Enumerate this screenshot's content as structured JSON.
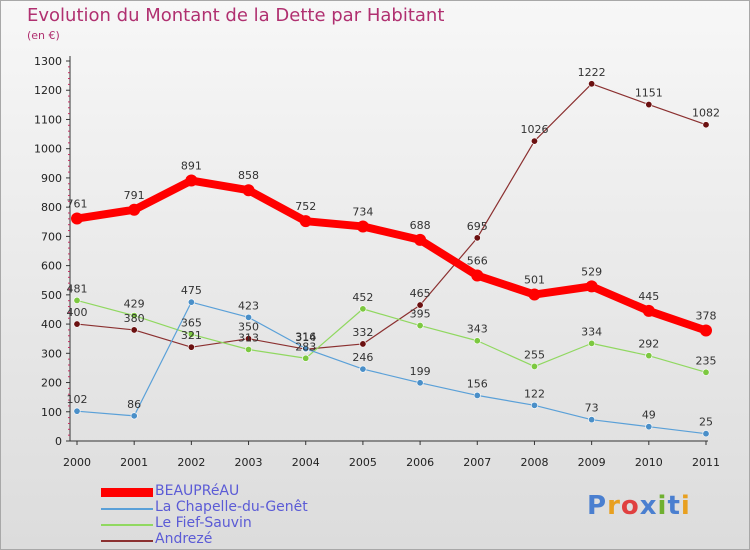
{
  "header": {
    "title": "Evolution du Montant de la Dette par Habitant",
    "subtitle": "(en €)"
  },
  "logo": {
    "text": "Proxiti",
    "colors": [
      "#4a7fd0",
      "#e8a020",
      "#e04040",
      "#4a7fd0",
      "#70b030",
      "#4a7fd0",
      "#e8a020"
    ]
  },
  "chart_data": {
    "type": "line",
    "x": [
      "2000",
      "2001",
      "2002",
      "2003",
      "2004",
      "2005",
      "2006",
      "2007",
      "2008",
      "2009",
      "2010",
      "2011"
    ],
    "ylim": [
      0,
      1300
    ],
    "yticks": [
      "0",
      "100",
      "200",
      "300",
      "400",
      "500",
      "600",
      "700",
      "800",
      "900",
      "1000",
      "1100",
      "1200",
      "1300"
    ],
    "grid": false,
    "legend_position": "bottom-left",
    "series": [
      {
        "name": "BEAUPRéAU",
        "color": "#ff0000",
        "marker": "#ff0000",
        "width": 8,
        "values": [
          761,
          791,
          891,
          858,
          752,
          734,
          688,
          566,
          501,
          529,
          445,
          378
        ],
        "labels": true
      },
      {
        "name": "La Chapelle-du-Genêt",
        "color": "#5aa0d8",
        "marker": "#4a8fc8",
        "width": 1.2,
        "values": [
          102,
          86,
          475,
          423,
          316,
          246,
          199,
          156,
          122,
          73,
          49,
          25
        ],
        "labels": true
      },
      {
        "name": "Le Fief-Sauvin",
        "color": "#90d860",
        "marker": "#7cc840",
        "width": 1.2,
        "values": [
          481,
          429,
          365,
          313,
          283,
          452,
          395,
          343,
          255,
          334,
          292,
          235
        ],
        "labels": true
      },
      {
        "name": "Andrezé",
        "color": "#8b3030",
        "marker": "#6b1010",
        "width": 1.2,
        "values": [
          400,
          380,
          321,
          350,
          314,
          332,
          465,
          695,
          1026,
          1222,
          1151,
          1082
        ],
        "labels": true
      }
    ]
  }
}
